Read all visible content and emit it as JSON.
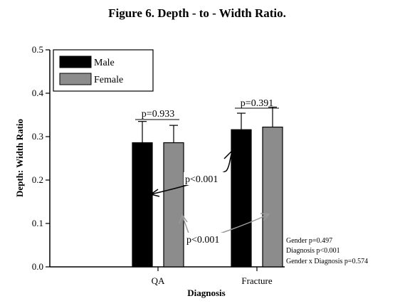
{
  "chart_data": {
    "type": "bar",
    "title": "Figure 6. Depth - to - Width Ratio.",
    "xlabel": "Diagnosis",
    "ylabel": "Depth: Width Ratio",
    "ylim": [
      0,
      0.5
    ],
    "yticks": [
      "0.0",
      "0.1",
      "0.2",
      "0.3",
      "0.4",
      "0.5"
    ],
    "categories": [
      "QA",
      "Fracture"
    ],
    "series": [
      {
        "name": "Male",
        "color": "#000000",
        "values": [
          0.286,
          0.316
        ],
        "errors": [
          0.049,
          0.038
        ]
      },
      {
        "name": "Female",
        "color": "#8c8c8c",
        "values": [
          0.286,
          0.322
        ],
        "errors": [
          0.04,
          0.046
        ]
      }
    ],
    "legend_position": "top-left",
    "grid": false,
    "annotations": {
      "qa_p": "p=0.933",
      "fracture_p": "p=0.391",
      "male_p": "p<0.001",
      "female_p": "p<0.001",
      "stats": [
        "Gender p=0.497",
        "Diagnosis p<0.001",
        "Gender x Diagnosis p=0.574"
      ]
    }
  }
}
